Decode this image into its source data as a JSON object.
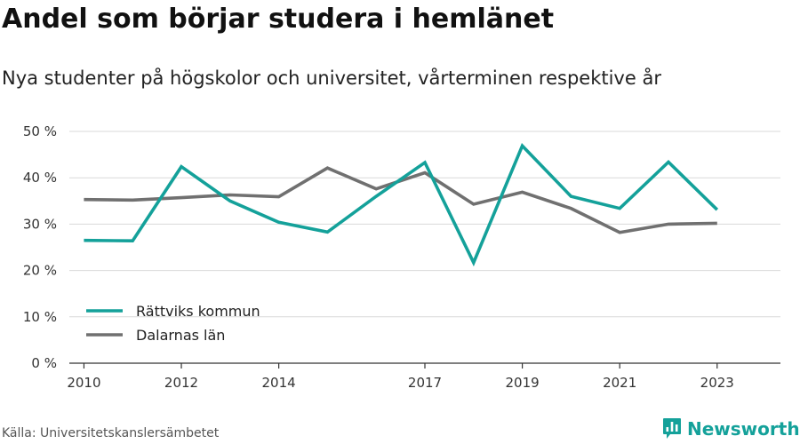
{
  "header": {
    "title": "Andel som börjar studera i hemlänet",
    "subtitle": "Nya studenter på högskolor och universitet, vårterminen respektive år"
  },
  "footer": {
    "source": "Källa: Universitetskanslersämbetet",
    "brand": "Newsworthy"
  },
  "colors": {
    "rattvik": "#14a19a",
    "dalarna": "#707070",
    "grid": "#d9d9d9",
    "axis": "#333333",
    "brand": "#14a19a"
  },
  "chart_data": {
    "type": "line",
    "title": "Andel som börjar studera i hemlänet",
    "subtitle": "Nya studenter på högskolor och universitet, vårterminen respektive år",
    "xlabel": "",
    "ylabel": "",
    "x": [
      2010,
      2011,
      2012,
      2013,
      2014,
      2015,
      2016,
      2017,
      2018,
      2019,
      2020,
      2021,
      2022,
      2023
    ],
    "x_ticks": [
      2010,
      2012,
      2014,
      2017,
      2019,
      2021,
      2023
    ],
    "x_tick_labels": [
      "2010",
      "2012",
      "2014",
      "2017",
      "2019",
      "2021",
      "2023"
    ],
    "xlim": [
      2009.7,
      2024.3
    ],
    "ylim": [
      0,
      50
    ],
    "y_ticks": [
      0,
      10,
      20,
      30,
      40,
      50
    ],
    "y_tick_labels": [
      "0 %",
      "10 %",
      "20 %",
      "30 %",
      "40 %",
      "50 %"
    ],
    "grid": true,
    "legend_position": "bottom-left",
    "series": [
      {
        "name": "Rättviks kommun",
        "color": "#14a19a",
        "values": [
          26.5,
          26.4,
          42.4,
          35.0,
          30.4,
          28.3,
          36.0,
          43.3,
          21.7,
          46.9,
          36.0,
          33.4,
          43.4,
          33.1
        ]
      },
      {
        "name": "Dalarnas län",
        "color": "#707070",
        "values": [
          35.3,
          35.2,
          35.7,
          36.3,
          35.9,
          42.1,
          37.6,
          41.1,
          34.3,
          36.9,
          33.4,
          28.2,
          30.0,
          30.2
        ]
      }
    ]
  }
}
